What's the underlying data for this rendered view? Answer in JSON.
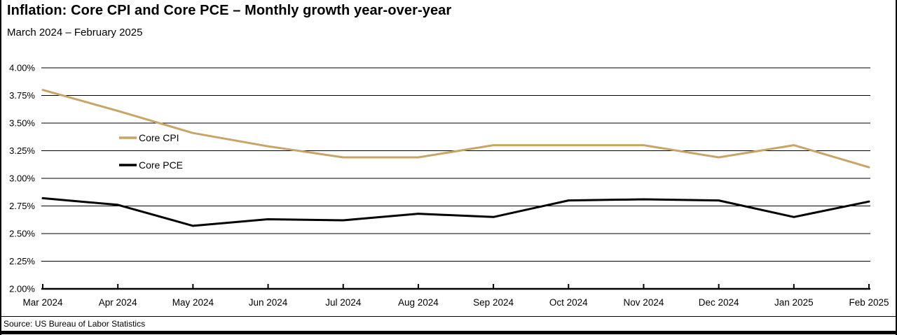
{
  "header": {
    "title": "Inflation: Core CPI and Core PCE – Monthly growth year-over-year",
    "subtitle": "March 2024 – February 2025"
  },
  "footer": {
    "source": "Source: US Bureau of Labor Statistics"
  },
  "chart_data": {
    "type": "line",
    "title": "Inflation: Core CPI and Core PCE – Monthly growth year-over-year",
    "subtitle": "March 2024 – February 2025",
    "categories": [
      "Mar 2024",
      "Apr 2024",
      "May 2024",
      "Jun 2024",
      "Jul 2024",
      "Aug 2024",
      "Sep 2024",
      "Oct 2024",
      "Nov 2024",
      "Dec 2024",
      "Jan 2025",
      "Feb 2025"
    ],
    "series": [
      {
        "name": "Core CPI",
        "color": "#C8A566",
        "values": [
          3.8,
          3.61,
          3.41,
          3.29,
          3.19,
          3.19,
          3.3,
          3.3,
          3.3,
          3.19,
          3.3,
          3.1
        ]
      },
      {
        "name": "Core PCE",
        "color": "#000000",
        "values": [
          2.82,
          2.76,
          2.57,
          2.63,
          2.62,
          2.68,
          2.65,
          2.8,
          2.81,
          2.8,
          2.65,
          2.79
        ]
      }
    ],
    "ylabel_format": "percent",
    "ylim": [
      2.0,
      4.0
    ],
    "ytick_step": 0.25,
    "ytick_labels": [
      "4.00%",
      "3.75%",
      "3.50%",
      "3.25%",
      "3.00%",
      "2.75%",
      "2.50%",
      "2.25%",
      "2.00%"
    ],
    "grid": "horizontal",
    "legend_position": "inside-top-left",
    "source": "Source: US Bureau of Labor Statistics"
  }
}
